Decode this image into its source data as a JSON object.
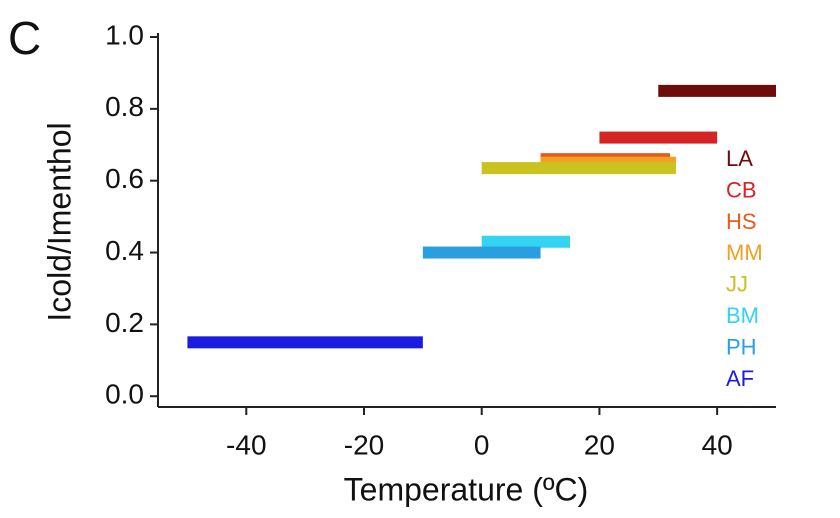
{
  "chart_data": {
    "type": "range-bar",
    "panel_label": "C",
    "xlabel": "Temperature (ºC)",
    "ylabel": "Icold/Imenthol",
    "xlim": [
      -55,
      50
    ],
    "xticks": [
      -40,
      -20,
      0,
      20,
      40
    ],
    "ylim": [
      -0.03,
      1.0
    ],
    "yticks": [
      {
        "value": 0,
        "label": "0.0"
      },
      {
        "value": 0.2,
        "label": "0.2"
      },
      {
        "value": 0.4,
        "label": "0.4"
      },
      {
        "value": 0.6,
        "label": "0.6"
      },
      {
        "value": 0.8,
        "label": "0.8"
      },
      {
        "value": 1.0,
        "label": "1.0"
      }
    ],
    "legend": "bottom-right",
    "series": [
      {
        "name": "LA",
        "color": "#6e0b0b",
        "start": 30,
        "end": 50,
        "value": 0.85
      },
      {
        "name": "CB",
        "color": "#d42424",
        "start": 20,
        "end": 40,
        "value": 0.72
      },
      {
        "name": "HS",
        "color": "#e85a1e",
        "start": 10,
        "end": 32,
        "value": 0.66
      },
      {
        "name": "MM",
        "color": "#f0a023",
        "start": 10,
        "end": 33,
        "value": 0.65
      },
      {
        "name": "JJ",
        "color": "#c9c21f",
        "start": 0,
        "end": 33,
        "value": 0.635
      },
      {
        "name": "BM",
        "color": "#33d4f2",
        "start": 0,
        "end": 15,
        "value": 0.43
      },
      {
        "name": "PH",
        "color": "#2a9fe0",
        "start": -10,
        "end": 10,
        "value": 0.4
      },
      {
        "name": "AF",
        "color": "#1c1ce0",
        "start": -50,
        "end": -10,
        "value": 0.15
      }
    ]
  }
}
